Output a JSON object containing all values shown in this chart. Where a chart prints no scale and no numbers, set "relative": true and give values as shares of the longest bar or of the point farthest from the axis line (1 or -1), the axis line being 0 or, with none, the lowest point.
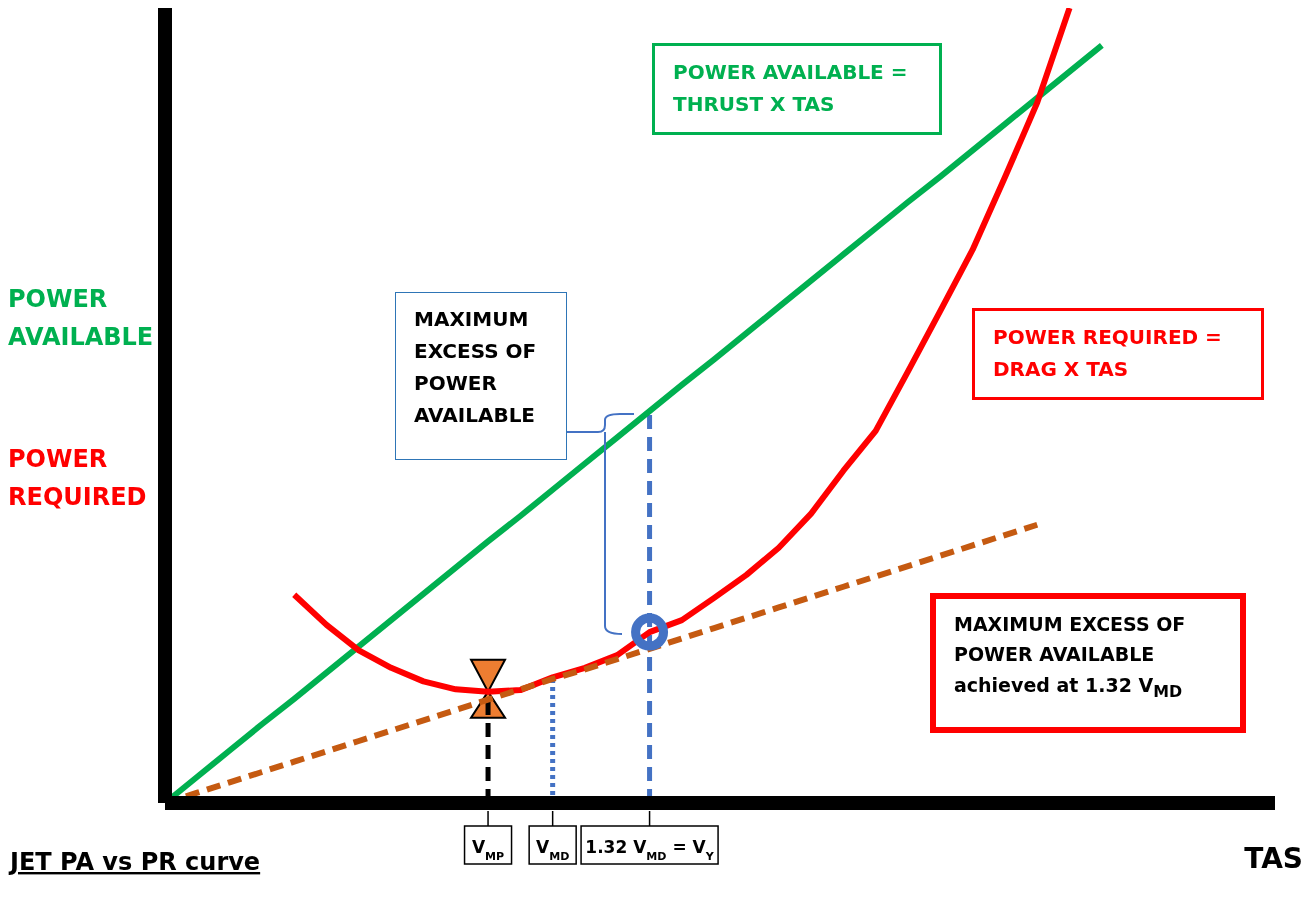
{
  "chart_data": {
    "type": "line",
    "title": "JET PA vs PR curve",
    "xlabel": "TAS",
    "relative": true,
    "marker": "none",
    "categories": [
      null,
      null,
      null,
      null,
      null,
      null,
      null,
      null,
      null,
      null,
      "V$_{MP}$",
      null,
      "V$_{MD}$",
      null,
      null,
      "1.32 V$_{MD}$ = V$_{Y}$",
      null,
      null,
      null,
      null,
      null,
      null,
      null,
      null,
      null,
      null,
      null,
      null,
      null,
      null,
      null,
      null,
      null,
      null,
      null
    ],
    "series": [
      {
        "name": "POWER  AVAILABLE = THRUST X TAS",
        "color": "#00b050",
        "line_style": "solid",
        "values": [
          0,
          0.033,
          0.066,
          0.099,
          0.131,
          0.164,
          0.197,
          0.23,
          0.263,
          0.296,
          0.329,
          0.361,
          0.394,
          0.427,
          0.46,
          0.493,
          0.526,
          0.558,
          0.591,
          0.624,
          0.657,
          0.69,
          0.723,
          0.756,
          0.788,
          0.821,
          0.854,
          0.887,
          0.92,
          0.953,
          null,
          null,
          null,
          null,
          null
        ]
      },
      {
        "name": "POWER  REQUIRED  = DRAG X TAS",
        "color": "#ff0000",
        "line_style": "solid",
        "values": [
          null,
          null,
          null,
          null,
          0.262,
          0.224,
          0.192,
          0.17,
          0.153,
          0.143,
          0.14,
          0.142,
          0.158,
          0.17,
          0.186,
          0.215,
          0.23,
          0.258,
          0.287,
          0.321,
          0.364,
          0.418,
          0.468,
          0.543,
          0.619,
          0.696,
          0.787,
          0.881,
          1,
          null,
          null,
          null,
          null,
          null,
          null
        ]
      },
      {
        "color": "#c55a11",
        "line_style": "dashed",
        "values": [
          0,
          0.013,
          0.026,
          0.039,
          0.052,
          0.065,
          0.078,
          0.091,
          0.104,
          0.117,
          0.13,
          0.143,
          0.156,
          0.168,
          0.181,
          0.194,
          0.207,
          0.22,
          0.233,
          0.246,
          0.259,
          0.272,
          0.285,
          0.298,
          0.311,
          0.324,
          0.337,
          0.35,
          null,
          null,
          null,
          null,
          null,
          null,
          null
        ]
      }
    ],
    "ref_lines": [
      {
        "axis": "x",
        "value": "V$_{MP}$",
        "color": "#000000",
        "line_style": "dashed"
      },
      {
        "axis": "x",
        "value": "V$_{MD}$",
        "color": "#4472c4",
        "line_style": "dotted"
      },
      {
        "axis": "x",
        "value": "1.32 V$_{MD}$ = V$_{Y}$",
        "color": "#4472c4",
        "line_style": "dashed"
      }
    ],
    "annotations": [
      "POWER AVAILABLE",
      "POWER REQUIRED",
      "MAXIMUM EXCESS OF POWER AVAILABLE",
      "MAXIMUM EXCESS OF POWER AVAILABLE achieved at 1.32 V$_{MD}$"
    ]
  }
}
